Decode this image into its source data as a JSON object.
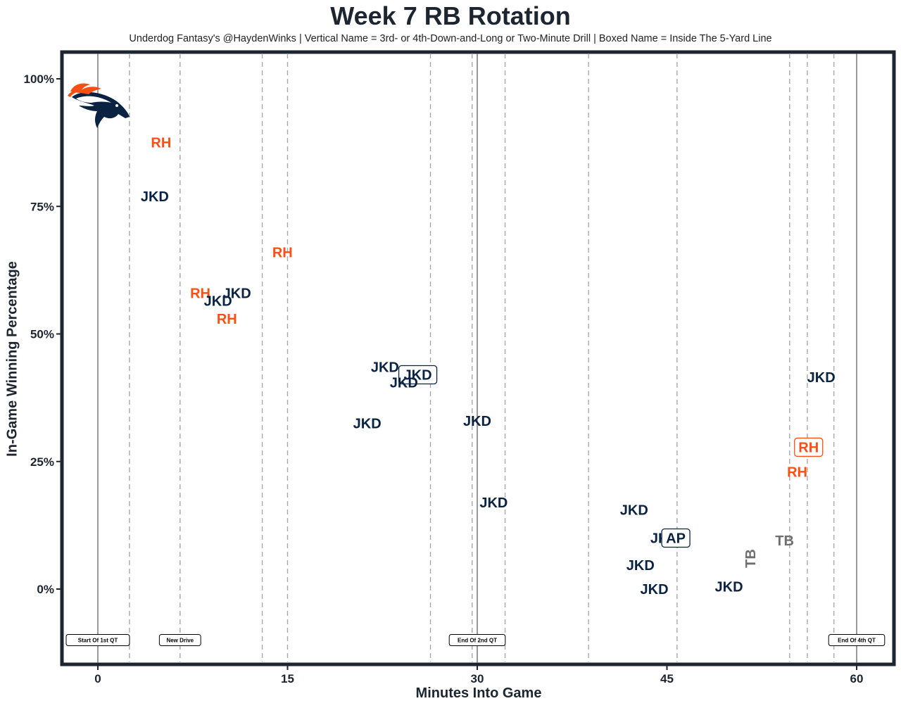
{
  "colors": {
    "navy": "#0a2343",
    "orange": "#fb4f14",
    "gray": "#6e6e6e",
    "frame": "#1d2530"
  },
  "logo": {
    "name": "Denver Broncos logo",
    "icon": "broncos-horse-icon"
  },
  "chart_data": {
    "type": "scatter",
    "title": "Week 7 RB Rotation",
    "subtitle": "Underdog Fantasy's @HaydenWinks | Vertical Name = 3rd- or 4th-Down-and-Long or Two-Minute Drill | Boxed Name = Inside The 5-Yard Line",
    "xlabel": "Minutes Into Game",
    "ylabel": "In-Game Winning Percentage",
    "xlim": [
      -2.8,
      63
    ],
    "ylim": [
      -0.15,
      1.05
    ],
    "x_ticks": [
      0,
      15,
      30,
      45,
      60
    ],
    "x_tick_labels": [
      "0",
      "15",
      "30",
      "45",
      "60"
    ],
    "y_ticks": [
      0,
      0.25,
      0.5,
      0.75,
      1.0
    ],
    "y_tick_labels": [
      "0%",
      "25%",
      "50%",
      "75%",
      "100%"
    ],
    "quarter_lines": [
      0,
      30,
      60
    ],
    "drive_lines": [
      2.5,
      6.5,
      13,
      15,
      26.3,
      29.6,
      32.2,
      38.8,
      45.8,
      54.7,
      56.1,
      58.2
    ],
    "annotations": [
      {
        "x": 0,
        "label": "Start Of 1st QT"
      },
      {
        "x": 6.5,
        "label": "New Drive"
      },
      {
        "x": 30,
        "label": "End Of 2nd QT"
      },
      {
        "x": 60,
        "label": "End Of 4th QT"
      }
    ],
    "annotation_y": -0.1,
    "points": [
      {
        "x": 5.0,
        "y": 0.875,
        "label": "RH",
        "player": "orange",
        "vertical": false,
        "boxed": false
      },
      {
        "x": 4.5,
        "y": 0.77,
        "label": "JKD",
        "player": "navy",
        "vertical": false,
        "boxed": false
      },
      {
        "x": 14.6,
        "y": 0.66,
        "label": "RH",
        "player": "orange",
        "vertical": false,
        "boxed": false
      },
      {
        "x": 8.1,
        "y": 0.58,
        "label": "RH",
        "player": "orange",
        "vertical": false,
        "boxed": false
      },
      {
        "x": 11.0,
        "y": 0.58,
        "label": "JKD",
        "player": "navy",
        "vertical": false,
        "boxed": false
      },
      {
        "x": 9.5,
        "y": 0.565,
        "label": "JKD",
        "player": "navy",
        "vertical": false,
        "boxed": false
      },
      {
        "x": 10.2,
        "y": 0.53,
        "label": "RH",
        "player": "orange",
        "vertical": false,
        "boxed": false
      },
      {
        "x": 22.7,
        "y": 0.435,
        "label": "JKD",
        "player": "navy",
        "vertical": false,
        "boxed": false
      },
      {
        "x": 25.3,
        "y": 0.42,
        "label": "JKD",
        "player": "navy",
        "vertical": false,
        "boxed": true
      },
      {
        "x": 24.2,
        "y": 0.405,
        "label": "JKD",
        "player": "navy",
        "vertical": false,
        "boxed": false
      },
      {
        "x": 21.3,
        "y": 0.325,
        "label": "JKD",
        "player": "navy",
        "vertical": false,
        "boxed": false
      },
      {
        "x": 30.0,
        "y": 0.33,
        "label": "JKD",
        "player": "navy",
        "vertical": false,
        "boxed": false
      },
      {
        "x": 31.3,
        "y": 0.17,
        "label": "JKD",
        "player": "navy",
        "vertical": false,
        "boxed": false
      },
      {
        "x": 42.4,
        "y": 0.155,
        "label": "JKD",
        "player": "navy",
        "vertical": false,
        "boxed": false
      },
      {
        "x": 44.8,
        "y": 0.1,
        "label": "JKD",
        "player": "navy",
        "vertical": false,
        "boxed": false
      },
      {
        "x": 45.7,
        "y": 0.1,
        "label": "AP",
        "player": "navy",
        "vertical": false,
        "boxed": true
      },
      {
        "x": 42.9,
        "y": 0.047,
        "label": "JKD",
        "player": "navy",
        "vertical": false,
        "boxed": false
      },
      {
        "x": 44.0,
        "y": 0.0,
        "label": "JKD",
        "player": "navy",
        "vertical": false,
        "boxed": false
      },
      {
        "x": 49.9,
        "y": 0.005,
        "label": "JKD",
        "player": "navy",
        "vertical": false,
        "boxed": false
      },
      {
        "x": 51.6,
        "y": 0.06,
        "label": "TB",
        "player": "gray",
        "vertical": true,
        "boxed": false
      },
      {
        "x": 54.3,
        "y": 0.095,
        "label": "TB",
        "player": "gray",
        "vertical": false,
        "boxed": false
      },
      {
        "x": 57.2,
        "y": 0.415,
        "label": "JKD",
        "player": "navy",
        "vertical": false,
        "boxed": false
      },
      {
        "x": 56.2,
        "y": 0.278,
        "label": "RH",
        "player": "orange",
        "vertical": false,
        "boxed": true
      },
      {
        "x": 55.3,
        "y": 0.23,
        "label": "RH",
        "player": "orange",
        "vertical": false,
        "boxed": false
      }
    ]
  }
}
